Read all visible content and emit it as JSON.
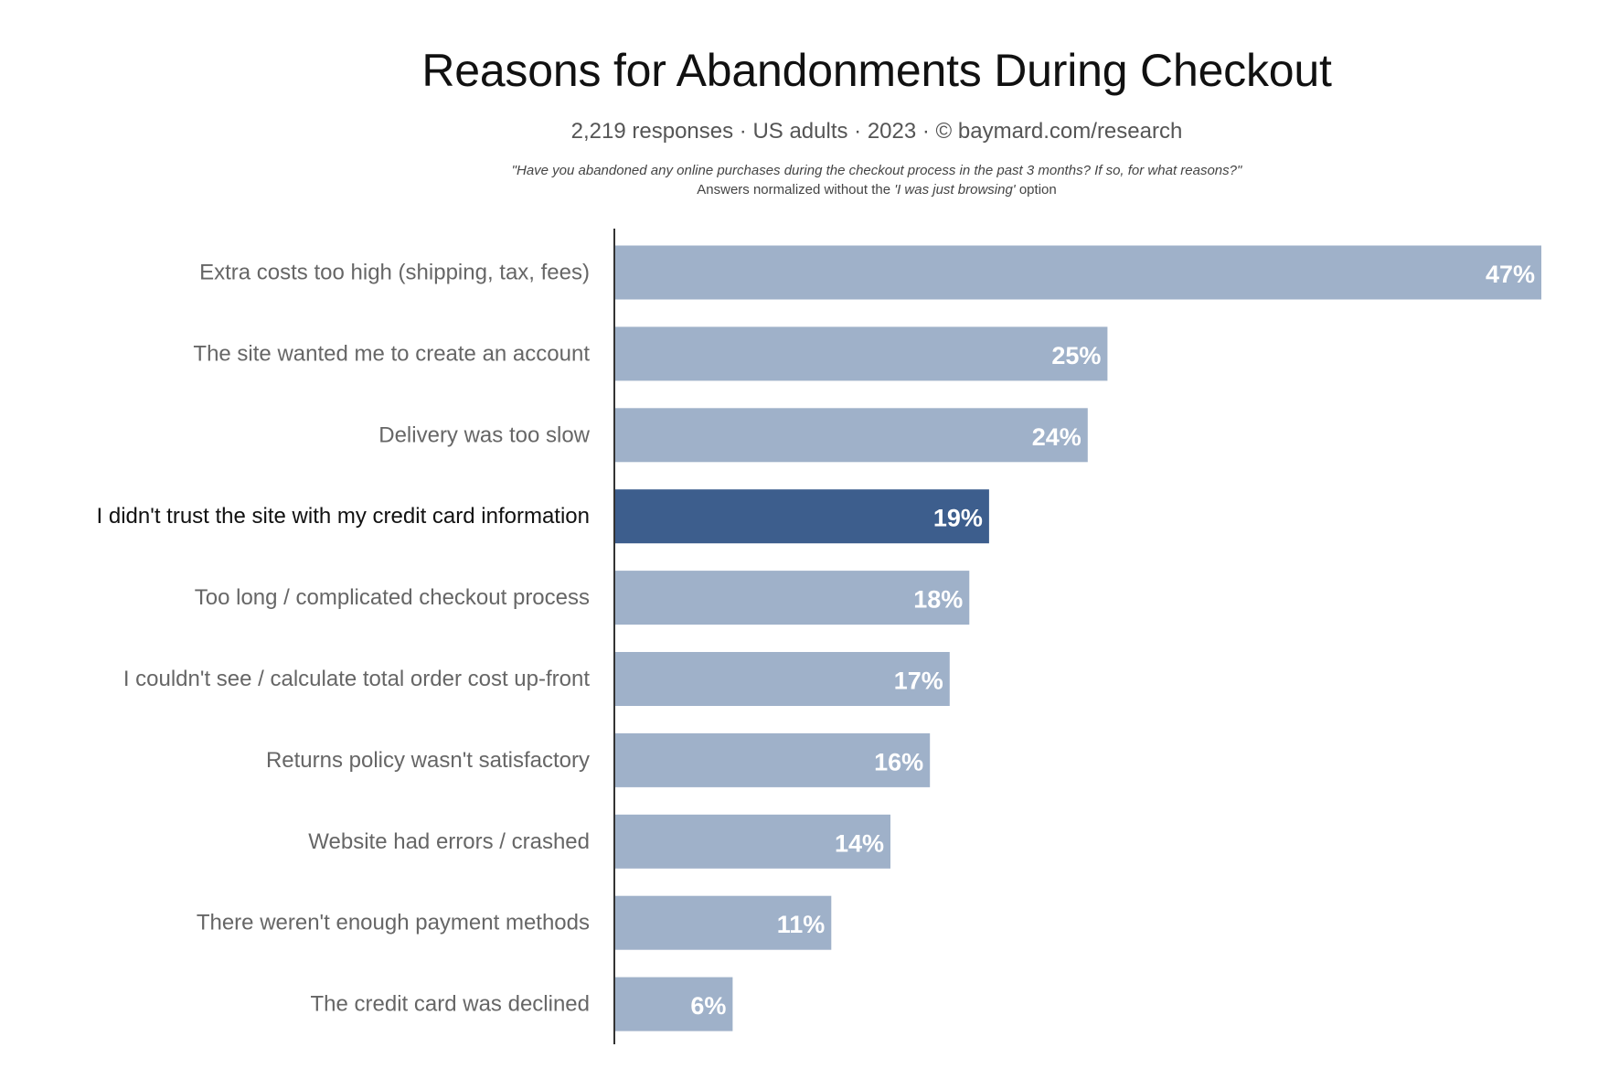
{
  "chart_data": {
    "type": "bar",
    "orientation": "horizontal",
    "title": "Reasons for Abandonments During Checkout",
    "subtitle": "2,219 responses  ·  US adults  ·  2023  ·  ©  baymard.com/research",
    "note_question": "\"Have you abandoned any online purchases during the checkout process in the past 3 months? If so, for what reasons?\"",
    "note_normalized_prefix": "Answers normalized without the ",
    "note_normalized_italic": "'I was just browsing'",
    "note_normalized_suffix": " option",
    "categories": [
      "Extra costs too high (shipping, tax, fees)",
      "The site wanted me to create an account",
      "Delivery was too slow",
      "I didn't trust the site with my credit card information",
      "Too long / complicated checkout process",
      "I couldn't see / calculate total order cost up-front",
      "Returns policy wasn't satisfactory",
      "Website had errors / crashed",
      "There weren't enough payment methods",
      "The credit card was declined"
    ],
    "values": [
      47,
      25,
      24,
      19,
      18,
      17,
      16,
      14,
      11,
      6
    ],
    "value_labels": [
      "47%",
      "25%",
      "24%",
      "19%",
      "18%",
      "17%",
      "16%",
      "14%",
      "11%",
      "6%"
    ],
    "highlighted_index": 3,
    "colors": {
      "bar": "#9fb1c9",
      "highlight_bar": "#3d5e8d",
      "axis": "#333333"
    }
  }
}
